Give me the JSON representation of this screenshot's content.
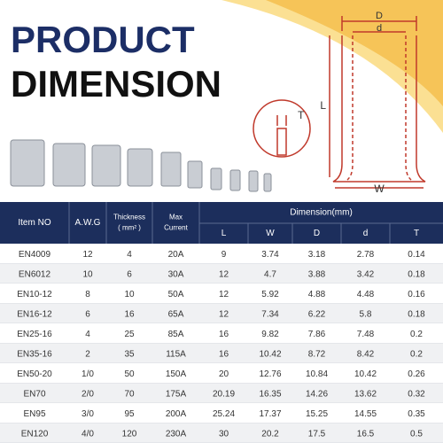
{
  "header": {
    "line1": "PRODUCT",
    "line2": "DIMENSION"
  },
  "diagram": {
    "outer": "D",
    "inner": "d",
    "length": "L",
    "thickness": "T",
    "width": "W"
  },
  "table": {
    "columns": [
      "Item NO",
      "A.W.G",
      [
        "Thickness",
        "( mm² )"
      ],
      [
        "Max",
        "Current"
      ]
    ],
    "group": "Dimension(mm)",
    "subcolumns": [
      "L",
      "W",
      "D",
      "d",
      "T"
    ],
    "rows": [
      [
        "EN4009",
        "12",
        "4",
        "20A",
        "9",
        "3.74",
        "3.18",
        "2.78",
        "0.14"
      ],
      [
        "EN6012",
        "10",
        "6",
        "30A",
        "12",
        "4.7",
        "3.88",
        "3.42",
        "0.18"
      ],
      [
        "EN10-12",
        "8",
        "10",
        "50A",
        "12",
        "5.92",
        "4.88",
        "4.48",
        "0.16"
      ],
      [
        "EN16-12",
        "6",
        "16",
        "65A",
        "12",
        "7.34",
        "6.22",
        "5.8",
        "0.18"
      ],
      [
        "EN25-16",
        "4",
        "25",
        "85A",
        "16",
        "9.82",
        "7.86",
        "7.48",
        "0.2"
      ],
      [
        "EN35-16",
        "2",
        "35",
        "115A",
        "16",
        "10.42",
        "8.72",
        "8.42",
        "0.2"
      ],
      [
        "EN50-20",
        "1/0",
        "50",
        "150A",
        "20",
        "12.76",
        "10.84",
        "10.42",
        "0.26"
      ],
      [
        "EN70",
        "2/0",
        "70",
        "175A",
        "20.19",
        "16.35",
        "14.26",
        "13.62",
        "0.32"
      ],
      [
        "EN95",
        "3/0",
        "95",
        "200A",
        "25.24",
        "17.37",
        "15.25",
        "14.55",
        "0.35"
      ],
      [
        "EN120",
        "4/0",
        "120",
        "230A",
        "30",
        "20.2",
        "17.5",
        "16.5",
        "0.5"
      ]
    ]
  }
}
